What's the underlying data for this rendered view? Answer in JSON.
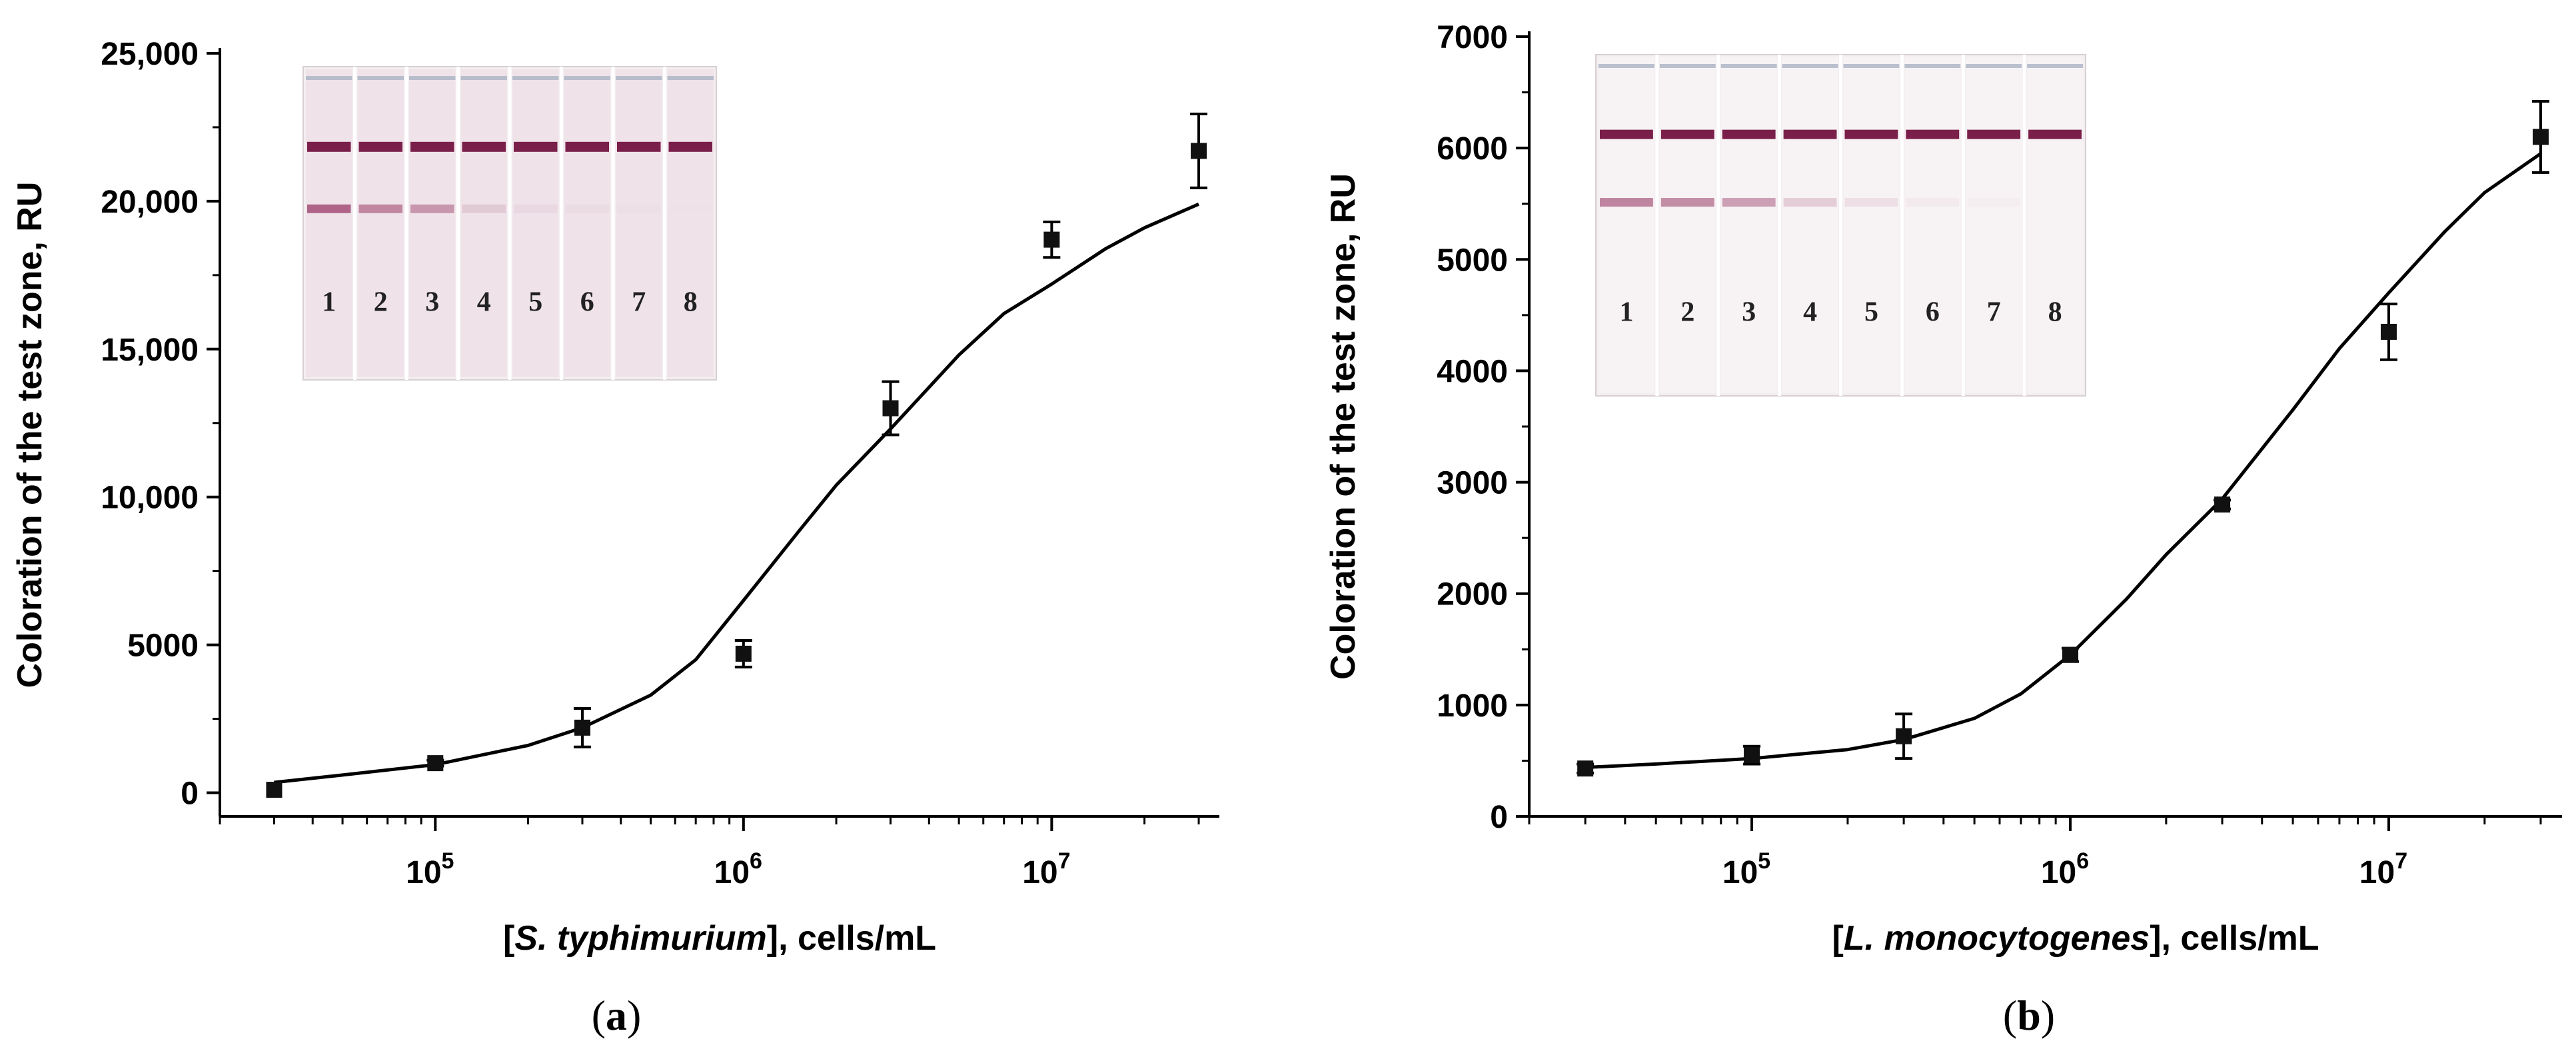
{
  "chart_data": [
    {
      "type": "scatter",
      "panel_label": "a",
      "xlabel_parts": [
        "[",
        "S. typhimurium",
        "], cells/mL"
      ],
      "ylabel": "Coloration of the test zone, RU",
      "x_scale": "log",
      "xlim": [
        20000,
        35000000
      ],
      "ylim": [
        -800,
        25000
      ],
      "x_ticks": [
        100000,
        1000000,
        10000000
      ],
      "x_tick_labels": [
        [
          "10",
          "5"
        ],
        [
          "10",
          "6"
        ],
        [
          "10",
          "7"
        ]
      ],
      "y_ticks": [
        0,
        5000,
        10000,
        15000,
        20000,
        25000
      ],
      "y_tick_labels": [
        "0",
        "5000",
        "10,000",
        "15,000",
        "20,000",
        "25,000"
      ],
      "grid": false,
      "points": [
        {
          "x": 30000,
          "y": 100,
          "err": 0
        },
        {
          "x": 100000,
          "y": 1000,
          "err": 100
        },
        {
          "x": 300000,
          "y": 2200,
          "err": 650
        },
        {
          "x": 1000000,
          "y": 4700,
          "err": 450
        },
        {
          "x": 3000000,
          "y": 13000,
          "err": 900
        },
        {
          "x": 10000000,
          "y": 18700,
          "err": 600
        },
        {
          "x": 30000000,
          "y": 21700,
          "err": 1250
        }
      ],
      "fit_curve": [
        [
          30000,
          350
        ],
        [
          50000,
          600
        ],
        [
          100000,
          950
        ],
        [
          200000,
          1600
        ],
        [
          300000,
          2200
        ],
        [
          500000,
          3300
        ],
        [
          700000,
          4500
        ],
        [
          1000000,
          6500
        ],
        [
          1500000,
          8800
        ],
        [
          2000000,
          10400
        ],
        [
          3000000,
          12300
        ],
        [
          5000000,
          14800
        ],
        [
          7000000,
          16200
        ],
        [
          10000000,
          17200
        ],
        [
          15000000,
          18400
        ],
        [
          20000000,
          19100
        ],
        [
          30000000,
          19900
        ]
      ],
      "strip_lane_labels": [
        "1",
        "2",
        "3",
        "4",
        "5",
        "6",
        "7",
        "8"
      ],
      "strip_test_line_intensity": [
        0.75,
        0.55,
        0.45,
        0.15,
        0.06,
        0.04,
        0.02,
        0.01
      ]
    },
    {
      "type": "scatter",
      "panel_label": "b",
      "xlabel_parts": [
        "[",
        "L. monocytogenes",
        "], cells/mL"
      ],
      "ylabel": "Coloration of the test zone, RU",
      "x_scale": "log",
      "xlim": [
        20000,
        35000000
      ],
      "ylim": [
        0,
        7000
      ],
      "x_ticks": [
        100000,
        1000000,
        10000000
      ],
      "x_tick_labels": [
        [
          "10",
          "5"
        ],
        [
          "10",
          "6"
        ],
        [
          "10",
          "7"
        ]
      ],
      "y_ticks": [
        0,
        1000,
        2000,
        3000,
        4000,
        5000,
        6000,
        7000
      ],
      "y_tick_labels": [
        "0",
        "1000",
        "2000",
        "3000",
        "4000",
        "5000",
        "6000",
        "7000"
      ],
      "grid": false,
      "points": [
        {
          "x": 30000,
          "y": 430,
          "err": 40
        },
        {
          "x": 100000,
          "y": 550,
          "err": 80
        },
        {
          "x": 300000,
          "y": 720,
          "err": 200
        },
        {
          "x": 1000000,
          "y": 1450,
          "err": 60
        },
        {
          "x": 3000000,
          "y": 2800,
          "err": 40
        },
        {
          "x": 10000000,
          "y": 4350,
          "err": 250
        },
        {
          "x": 30000000,
          "y": 6100,
          "err": 320
        }
      ],
      "fit_curve": [
        [
          30000,
          440
        ],
        [
          50000,
          470
        ],
        [
          100000,
          520
        ],
        [
          200000,
          600
        ],
        [
          300000,
          690
        ],
        [
          500000,
          880
        ],
        [
          700000,
          1100
        ],
        [
          1000000,
          1450
        ],
        [
          1500000,
          1950
        ],
        [
          2000000,
          2350
        ],
        [
          3000000,
          2850
        ],
        [
          5000000,
          3650
        ],
        [
          7000000,
          4200
        ],
        [
          10000000,
          4700
        ],
        [
          15000000,
          5250
        ],
        [
          20000000,
          5600
        ],
        [
          30000000,
          5950
        ]
      ],
      "strip_lane_labels": [
        "1",
        "2",
        "3",
        "4",
        "5",
        "6",
        "7",
        "8"
      ],
      "strip_test_line_intensity": [
        0.6,
        0.55,
        0.45,
        0.2,
        0.1,
        0.04,
        0.02,
        0.0
      ]
    }
  ],
  "colors": {
    "marker": "#111111",
    "line": "#000000",
    "strip_background": "#efe6ea",
    "strip_control_line": "#7a1f4a",
    "strip_test_line": "#9a3a66"
  }
}
